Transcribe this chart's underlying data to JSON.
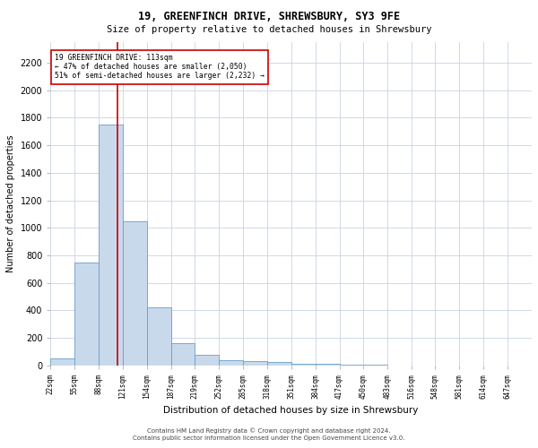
{
  "title1": "19, GREENFINCH DRIVE, SHREWSBURY, SY3 9FE",
  "title2": "Size of property relative to detached houses in Shrewsbury",
  "xlabel": "Distribution of detached houses by size in Shrewsbury",
  "ylabel": "Number of detached properties",
  "footer1": "Contains HM Land Registry data © Crown copyright and database right 2024.",
  "footer2": "Contains public sector information licensed under the Open Government Licence v3.0.",
  "bar_color": "#c9d9ec",
  "bar_edge_color": "#6a9ec5",
  "grid_color": "#d0d8e8",
  "line_color": "#cc0000",
  "annotation_text_line1": "19 GREENFINCH DRIVE: 113sqm",
  "annotation_text_line2": "← 47% of detached houses are smaller (2,050)",
  "annotation_text_line3": "51% of semi-detached houses are larger (2,232) →",
  "property_line_x": 113,
  "bin_edges": [
    22,
    55,
    88,
    121,
    154,
    187,
    219,
    252,
    285,
    318,
    351,
    384,
    417,
    450,
    483,
    516,
    548,
    581,
    614,
    647,
    680
  ],
  "bar_values": [
    50,
    750,
    1750,
    1050,
    420,
    160,
    80,
    40,
    30,
    25,
    15,
    10,
    8,
    4,
    2,
    1,
    1,
    0,
    0,
    0
  ],
  "ylim": [
    0,
    2350
  ],
  "yticks": [
    0,
    200,
    400,
    600,
    800,
    1000,
    1200,
    1400,
    1600,
    1800,
    2000,
    2200
  ],
  "xlim": [
    22,
    680
  ],
  "bg_color": "#ffffff",
  "title1_fontsize": 8.5,
  "title2_fontsize": 7.5,
  "ylabel_fontsize": 7,
  "xlabel_fontsize": 7.5,
  "ytick_fontsize": 7,
  "xtick_fontsize": 5.5,
  "footer_fontsize": 5.0
}
